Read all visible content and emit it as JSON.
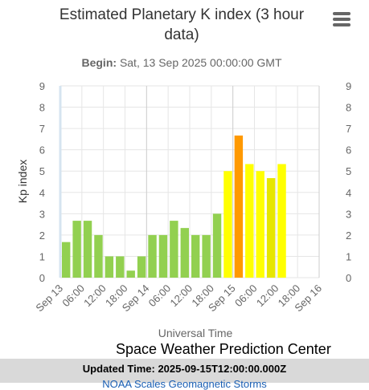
{
  "chart_data": {
    "type": "bar",
    "title": "Estimated Planetary K index (3 hour data)",
    "title_line1": "Estimated Planetary K index (3 hour",
    "title_line2": "data)",
    "subtitle_label": "Begin:",
    "subtitle_value": "Sat, 13 Sep 2025 00:00:00 GMT",
    "ylabel": "Kp index",
    "xlabel": "Universal Time",
    "ylim": [
      0,
      9
    ],
    "y_ticks": [
      "0",
      "1",
      "2",
      "3",
      "4",
      "5",
      "6",
      "7",
      "8",
      "9"
    ],
    "x_tick_labels": [
      "Sep 13",
      "06:00",
      "12:00",
      "18:00",
      "Sep 14",
      "06:00",
      "12:00",
      "18:00",
      "Sep 15",
      "06:00",
      "12:00",
      "18:00",
      "Sep 16"
    ],
    "grid": true,
    "bars": [
      {
        "time": "2025-09-13 00:00",
        "value": 1.67
      },
      {
        "time": "2025-09-13 03:00",
        "value": 2.67
      },
      {
        "time": "2025-09-13 06:00",
        "value": 2.67
      },
      {
        "time": "2025-09-13 09:00",
        "value": 2.0
      },
      {
        "time": "2025-09-13 12:00",
        "value": 1.0
      },
      {
        "time": "2025-09-13 15:00",
        "value": 1.0
      },
      {
        "time": "2025-09-13 18:00",
        "value": 0.33
      },
      {
        "time": "2025-09-13 21:00",
        "value": 1.0
      },
      {
        "time": "2025-09-14 00:00",
        "value": 2.0
      },
      {
        "time": "2025-09-14 03:00",
        "value": 2.0
      },
      {
        "time": "2025-09-14 06:00",
        "value": 2.67
      },
      {
        "time": "2025-09-14 09:00",
        "value": 2.33
      },
      {
        "time": "2025-09-14 12:00",
        "value": 2.0
      },
      {
        "time": "2025-09-14 15:00",
        "value": 2.0
      },
      {
        "time": "2025-09-14 18:00",
        "value": 3.0
      },
      {
        "time": "2025-09-14 21:00",
        "value": 5.0
      },
      {
        "time": "2025-09-15 00:00",
        "value": 6.67
      },
      {
        "time": "2025-09-15 03:00",
        "value": 5.33
      },
      {
        "time": "2025-09-15 06:00",
        "value": 5.0
      },
      {
        "time": "2025-09-15 09:00",
        "value": 4.67
      },
      {
        "time": "2025-09-15 12:00",
        "value": 5.33
      }
    ],
    "colors": {
      "green": "#92d050",
      "yellow": "#ffff00",
      "yellow_dark": "#e6e600",
      "orange": "#ff9900",
      "grid": "#e6e6e6",
      "plot_line": "#d6e4f0"
    }
  },
  "credit": "Space Weather Prediction Center",
  "footer": {
    "updated": "Updated Time: 2025-09-15T12:00:00.000Z",
    "link": "NOAA Scales Geomagnetic Storms"
  },
  "menu_icon": "hamburger-menu-icon"
}
